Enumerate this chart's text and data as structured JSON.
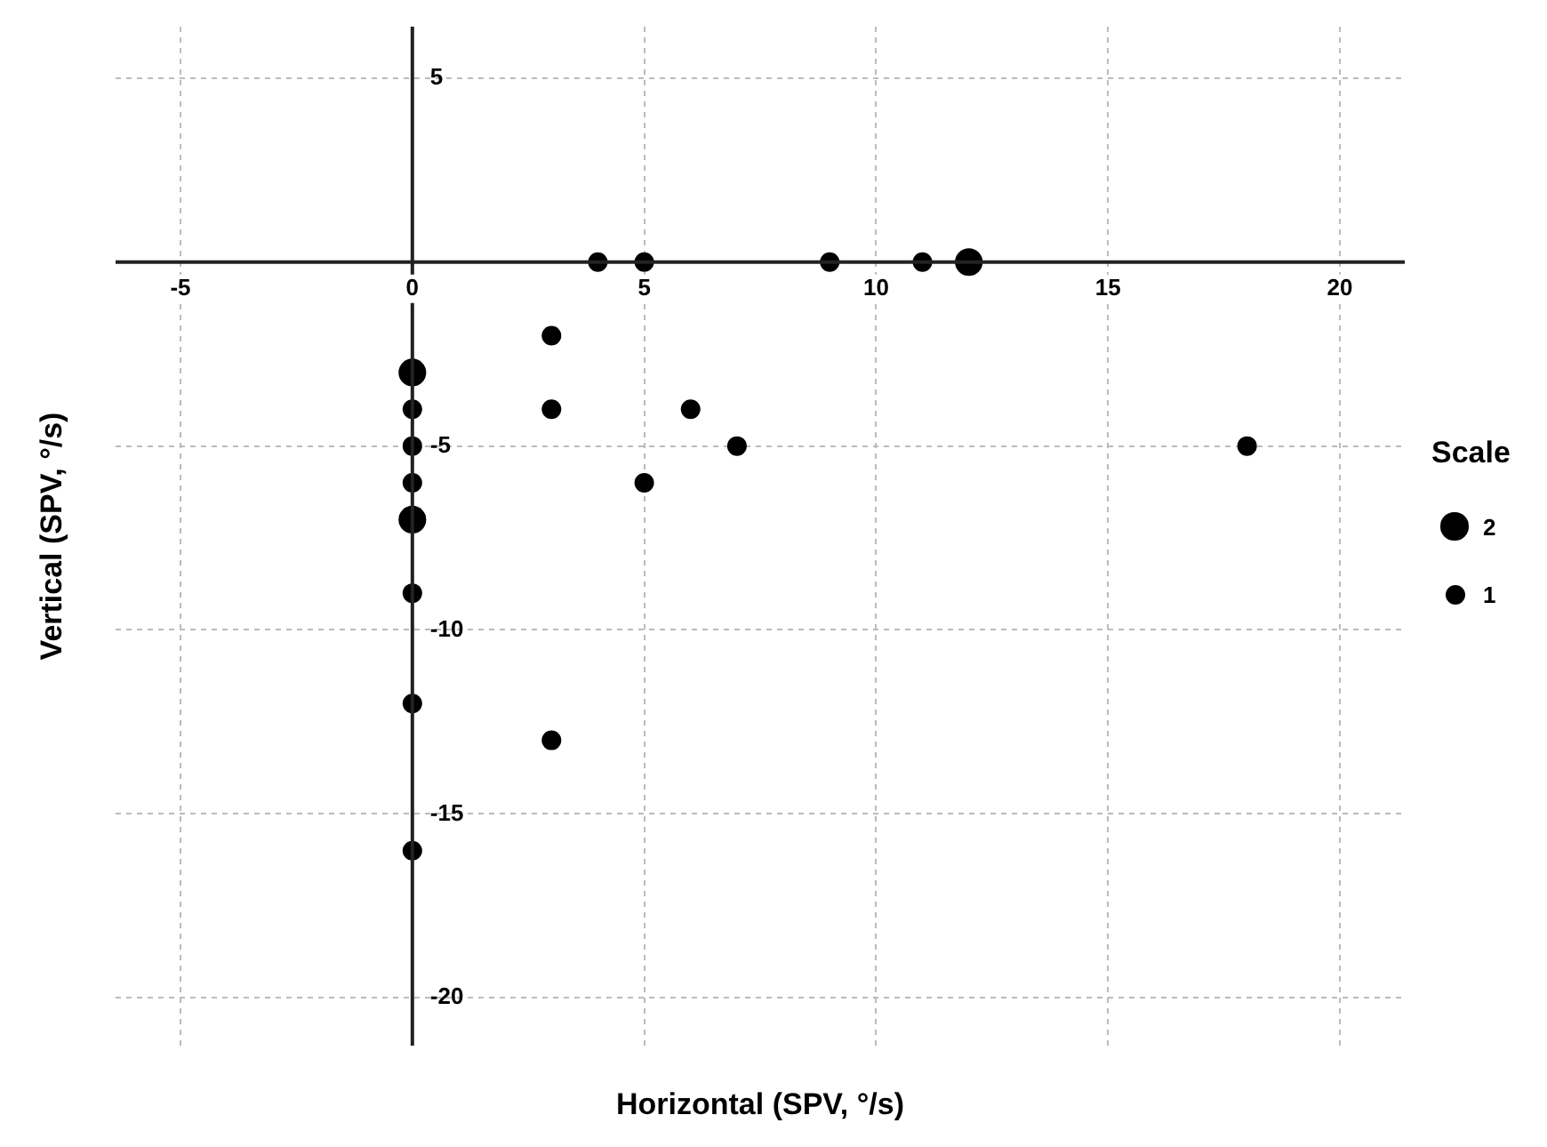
{
  "chart_data": {
    "type": "bubble",
    "xlabel": "Horizontal (SPV, °/s)",
    "ylabel": "Vertical (SPV, °/s)",
    "legend_title": "Scale",
    "grid": true,
    "xlim": [
      -6.4,
      21.4
    ],
    "ylim": [
      -21.3,
      6.4
    ],
    "xticks": [
      -5,
      0,
      5,
      10,
      15,
      20
    ],
    "yticks": [
      5,
      {
        "value": 0,
        "label": null
      },
      -5,
      -10,
      -15,
      -20
    ],
    "size_legend": [
      2,
      1
    ],
    "series": [
      {
        "color": "#000000",
        "x": [
          4,
          5,
          9,
          11,
          12,
          3,
          0,
          0,
          3,
          6,
          0,
          7,
          18,
          0,
          5,
          0,
          0,
          0,
          3,
          0
        ],
        "values": [
          0,
          0,
          0,
          0,
          0,
          -2,
          -3,
          -4,
          -4,
          -4,
          -5,
          -5,
          -5,
          -6,
          -6,
          -7,
          -9,
          -12,
          -13,
          -16
        ],
        "sizes": [
          1,
          1,
          1,
          1,
          2,
          1,
          2,
          1,
          1,
          1,
          1,
          1,
          1,
          1,
          1,
          2,
          1,
          1,
          1,
          1
        ]
      }
    ]
  }
}
